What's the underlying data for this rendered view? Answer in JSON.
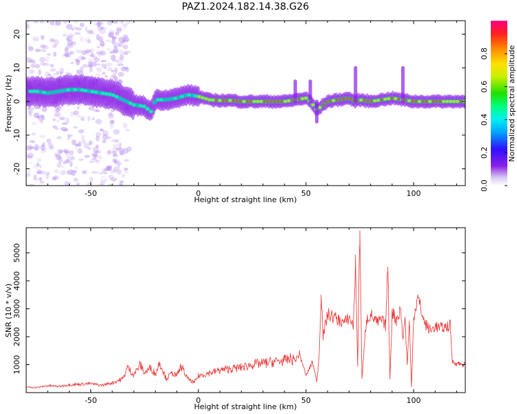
{
  "title": "PAZ1.2024.182.14.38.G26",
  "chart_data": [
    {
      "type": "heatmap",
      "title": "PAZ1.2024.182.14.38.G26",
      "xlabel": "Height of straight line (km)",
      "ylabel": "Frequency (Hz)",
      "xlim": [
        -80,
        124
      ],
      "ylim": [
        -25,
        24
      ],
      "x_ticks": [
        -50,
        0,
        50,
        100
      ],
      "x_tick_labels": [
        "-50",
        "0",
        "50",
        "100"
      ],
      "y_ticks": [
        -20,
        -10,
        0,
        10,
        20
      ],
      "y_tick_labels": [
        "-20",
        "-10",
        "0",
        "10",
        "20"
      ],
      "colorbar": {
        "label": "Normalized spectral amplitude",
        "range": [
          0,
          1
        ],
        "ticks": [
          0.0,
          0.2,
          0.4,
          0.6,
          0.8
        ],
        "tick_labels": [
          "0.0",
          "0.2",
          "0.4",
          "0.6",
          "0.8"
        ],
        "colormap": [
          "#ffffff",
          "#d8c8f0",
          "#8a20e8",
          "#3010ff",
          "#00a0ff",
          "#00f0f0",
          "#00ff80",
          "#20e000",
          "#c8f000",
          "#ffe000",
          "#ff8000",
          "#ff2020",
          "#ff0080"
        ]
      },
      "ridge_x": [
        -80,
        -75,
        -70,
        -65,
        -60,
        -55,
        -50,
        -45,
        -40,
        -35,
        -30,
        -25,
        -22,
        -20,
        -15,
        -10,
        -5,
        0,
        5,
        10,
        15,
        20,
        25,
        30,
        35,
        40,
        45,
        50,
        52,
        55,
        60,
        65,
        70,
        73,
        75,
        80,
        85,
        90,
        95,
        100,
        105,
        110,
        115,
        120,
        124
      ],
      "ridge_y": [
        3.0,
        3.0,
        2.5,
        3.0,
        3.5,
        3.5,
        3.0,
        2.5,
        2.0,
        0.5,
        -1.0,
        -1.5,
        -3.0,
        0.5,
        0.5,
        1.0,
        2.0,
        1.5,
        0.5,
        0.3,
        0.3,
        0.0,
        0.0,
        0.0,
        0.0,
        0.0,
        0.5,
        1.0,
        0.0,
        -2.5,
        0.0,
        0.5,
        1.0,
        0.0,
        0.5,
        0.0,
        0.5,
        1.0,
        0.5,
        0.0,
        0.0,
        0.0,
        0.0,
        0.0,
        0.0
      ]
    },
    {
      "type": "line",
      "xlabel": "Height of straight line (km)",
      "ylabel": "SNR (10 * v/v)",
      "xlim": [
        -80,
        124
      ],
      "ylim": [
        0,
        5900
      ],
      "x_ticks": [
        -50,
        0,
        50,
        100
      ],
      "x_tick_labels": [
        "-50",
        "0",
        "50",
        "100"
      ],
      "y_ticks": [
        1000,
        2000,
        3000,
        4000,
        5000
      ],
      "y_tick_labels": [
        "1000",
        "2000",
        "3000",
        "4000",
        "5000"
      ],
      "color": "#e83030",
      "series": [
        {
          "x": [
            -80,
            -75,
            -70,
            -65,
            -60,
            -55,
            -50,
            -45,
            -40,
            -35,
            -33,
            -30,
            -27,
            -25,
            -22,
            -20,
            -18,
            -15,
            -12,
            -10,
            -8,
            -5,
            -2,
            0,
            5,
            10,
            15,
            20,
            25,
            30,
            35,
            40,
            43,
            45,
            47,
            50,
            53,
            55,
            56,
            57,
            58,
            60,
            63,
            65,
            68,
            70,
            72,
            73,
            74,
            75,
            76,
            78,
            80,
            83,
            85,
            87,
            88,
            89,
            90,
            92,
            94,
            95,
            96,
            97,
            98,
            99,
            100,
            102,
            105,
            108,
            110,
            112,
            115,
            117,
            118,
            120,
            124
          ],
          "y": [
            200,
            180,
            250,
            220,
            280,
            300,
            320,
            260,
            350,
            500,
            900,
            650,
            1000,
            700,
            900,
            650,
            1100,
            500,
            700,
            600,
            950,
            500,
            350,
            600,
            700,
            800,
            850,
            900,
            1000,
            1050,
            1100,
            1150,
            1200,
            1150,
            1400,
            600,
            1100,
            400,
            1200,
            3500,
            2000,
            2800,
            2700,
            2600,
            2500,
            2700,
            2400,
            4600,
            1000,
            5800,
            500,
            2600,
            2800,
            2500,
            2600,
            2400,
            4500,
            500,
            2900,
            2600,
            3000,
            1900,
            2700,
            1000,
            2500,
            200,
            2700,
            3400,
            2500,
            2200,
            2400,
            2300,
            2350,
            2400,
            1100,
            1050,
            1000
          ]
        }
      ]
    }
  ]
}
